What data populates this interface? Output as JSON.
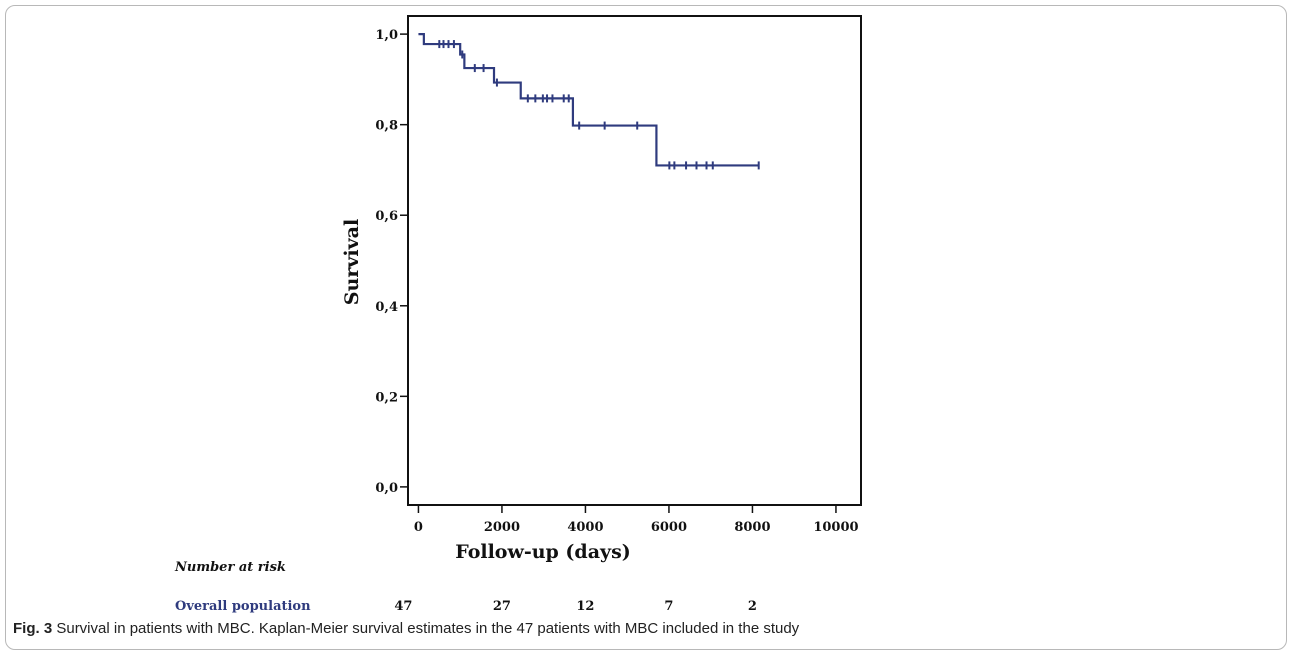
{
  "caption": {
    "label": "Fig. 3",
    "text": "Survival in patients with MBC. Kaplan-Meier survival estimates in the 47 patients with MBC included in the study"
  },
  "colors": {
    "curve": "#2f3b7e",
    "axis": "#111111"
  },
  "risk_table": {
    "header": "Number at risk",
    "row_label": "Overall population",
    "times": [
      0,
      2000,
      4000,
      6000,
      8000
    ],
    "counts": [
      "47",
      "27",
      "12",
      "7",
      "2"
    ]
  },
  "chart_data": {
    "type": "line",
    "subtype": "kaplan-meier",
    "xlabel": "Follow-up (days)",
    "ylabel": "Survival",
    "xlim": [
      -250,
      10600
    ],
    "ylim": [
      -0.04,
      1.04
    ],
    "xticks": [
      0,
      2000,
      4000,
      6000,
      8000,
      10000
    ],
    "xtick_labels": [
      "0",
      "2000",
      "4000",
      "6000",
      "8000",
      "10000"
    ],
    "yticks": [
      0.0,
      0.2,
      0.4,
      0.6,
      0.8,
      1.0
    ],
    "ytick_labels": [
      "0,0",
      "0,2",
      "0,4",
      "0,6",
      "0,8",
      "1,0"
    ],
    "grid": false,
    "series": [
      {
        "steps": [
          {
            "x": 0,
            "y": 1.0
          },
          {
            "x": 130,
            "y": 0.978
          },
          {
            "x": 1000,
            "y": 0.955
          },
          {
            "x": 1100,
            "y": 0.925
          },
          {
            "x": 1810,
            "y": 0.893
          },
          {
            "x": 2450,
            "y": 0.858
          },
          {
            "x": 3700,
            "y": 0.798
          },
          {
            "x": 5700,
            "y": 0.71
          }
        ],
        "end_x": 8150,
        "censored": [
          {
            "x": 500,
            "y": 0.978
          },
          {
            "x": 600,
            "y": 0.978
          },
          {
            "x": 720,
            "y": 0.978
          },
          {
            "x": 850,
            "y": 0.978
          },
          {
            "x": 1050,
            "y": 0.955
          },
          {
            "x": 1350,
            "y": 0.925
          },
          {
            "x": 1560,
            "y": 0.925
          },
          {
            "x": 1880,
            "y": 0.893
          },
          {
            "x": 2620,
            "y": 0.858
          },
          {
            "x": 2800,
            "y": 0.858
          },
          {
            "x": 2980,
            "y": 0.858
          },
          {
            "x": 3080,
            "y": 0.858
          },
          {
            "x": 3210,
            "y": 0.858
          },
          {
            "x": 3480,
            "y": 0.858
          },
          {
            "x": 3600,
            "y": 0.858
          },
          {
            "x": 3850,
            "y": 0.798
          },
          {
            "x": 4460,
            "y": 0.798
          },
          {
            "x": 5240,
            "y": 0.798
          },
          {
            "x": 6010,
            "y": 0.71
          },
          {
            "x": 6130,
            "y": 0.71
          },
          {
            "x": 6410,
            "y": 0.71
          },
          {
            "x": 6660,
            "y": 0.71
          },
          {
            "x": 6900,
            "y": 0.71
          },
          {
            "x": 7050,
            "y": 0.71
          },
          {
            "x": 8150,
            "y": 0.71
          }
        ]
      }
    ]
  }
}
